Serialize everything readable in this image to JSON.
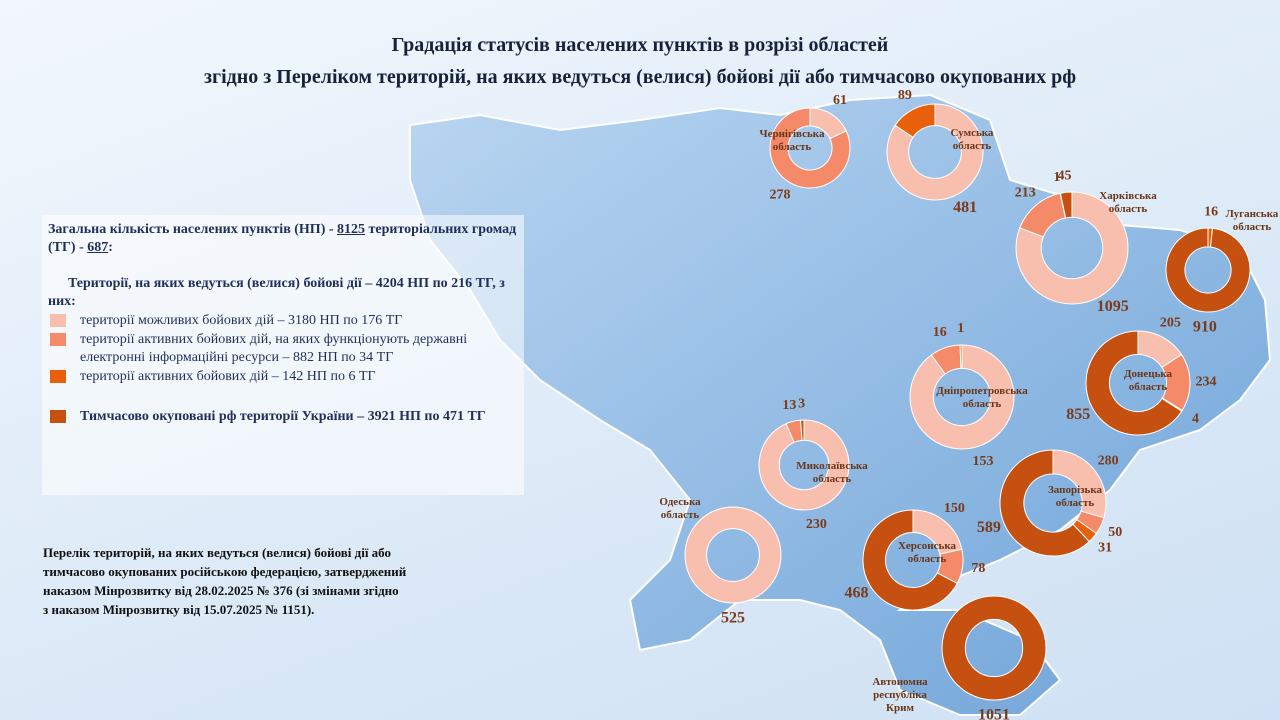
{
  "title": [
    "Градація статусів населених пунктів в розрізі областей",
    "згідно з Переліком територій, на яких ведуться (велися) бойові дії або тимчасово окупованих рф"
  ],
  "summary": {
    "total_prefix": "Загальна кількість населених пунктів (НП) -",
    "total_np": "8125",
    "total_mid": "територіальних громад (ТГ) -",
    "total_tg": "687",
    "total_end": ":",
    "combat": "Території, на яких ведуться (велися) бойові дії –  4204 НП по 216 ТГ, з них:"
  },
  "legend": [
    {
      "label": "території можливих бойових дій – 3180 НП  по 176 ТГ",
      "color": "#f9bfae"
    },
    {
      "label": "території активних бойових дій, на яких функціонують державні електронні інформаційні ресурси – 882 НП по 34 ТГ",
      "color": "#f48a68"
    },
    {
      "label": "території активних бойових дій – 142 НП по 6 ТГ",
      "color": "#e8600c"
    },
    {
      "label": "Тимчасово окуповані рф території України – 3921 НП по 471 ТГ",
      "color": "#c5500f"
    }
  ],
  "note": [
    "Перелік територій, на яких ведуться (велися) бойові дії або",
    "тимчасово окупованих російською федерацією, затверджений",
    "наказом Мінрозвитку від 28.02.2025 № 376 (зі змінами згідно",
    "з наказом Мінрозвитку від 15.07.2025 № 1151)."
  ],
  "chart_data": [
    {
      "type": "pie",
      "title": "Чернігівська область",
      "values": [
        61,
        278
      ],
      "colors": [
        "#f9bfae",
        "#f48a68"
      ]
    },
    {
      "type": "pie",
      "title": "Сумська область",
      "values": [
        481,
        89
      ],
      "colors": [
        "#f9bfae",
        "#e8600c"
      ]
    },
    {
      "type": "pie",
      "title": "Харківська область",
      "values": [
        1095,
        213,
        1,
        45
      ],
      "colors": [
        "#f9bfae",
        "#f48a68",
        "#e8600c",
        "#c5500f"
      ]
    },
    {
      "type": "pie",
      "title": "Луганська область",
      "values": [
        16,
        910
      ],
      "colors": [
        "#e8600c",
        "#c5500f"
      ]
    },
    {
      "type": "pie",
      "title": "Дніпропетровська область",
      "values": [
        153,
        16,
        1
      ],
      "colors": [
        "#f9bfae",
        "#f48a68",
        "#e8600c"
      ]
    },
    {
      "type": "pie",
      "title": "Донецька область",
      "values": [
        205,
        234,
        4,
        855
      ],
      "colors": [
        "#f9bfae",
        "#f48a68",
        "#e8600c",
        "#c5500f"
      ]
    },
    {
      "type": "pie",
      "title": "Миколаївська область",
      "values": [
        230,
        13,
        3
      ],
      "colors": [
        "#f9bfae",
        "#f48a68",
        "#c5500f"
      ]
    },
    {
      "type": "pie",
      "title": "Запорізька область",
      "values": [
        280,
        50,
        31,
        589
      ],
      "colors": [
        "#f9bfae",
        "#f48a68",
        "#e8600c",
        "#c5500f"
      ]
    },
    {
      "type": "pie",
      "title": "Одеська область",
      "values": [
        525
      ],
      "colors": [
        "#f9bfae"
      ]
    },
    {
      "type": "pie",
      "title": "Херсонська область",
      "values": [
        150,
        78,
        468
      ],
      "colors": [
        "#f9bfae",
        "#f48a68",
        "#c5500f"
      ]
    },
    {
      "type": "pie",
      "title": "Автономна республіка Крим",
      "values": [
        1051
      ],
      "colors": [
        "#c5500f"
      ]
    }
  ]
}
